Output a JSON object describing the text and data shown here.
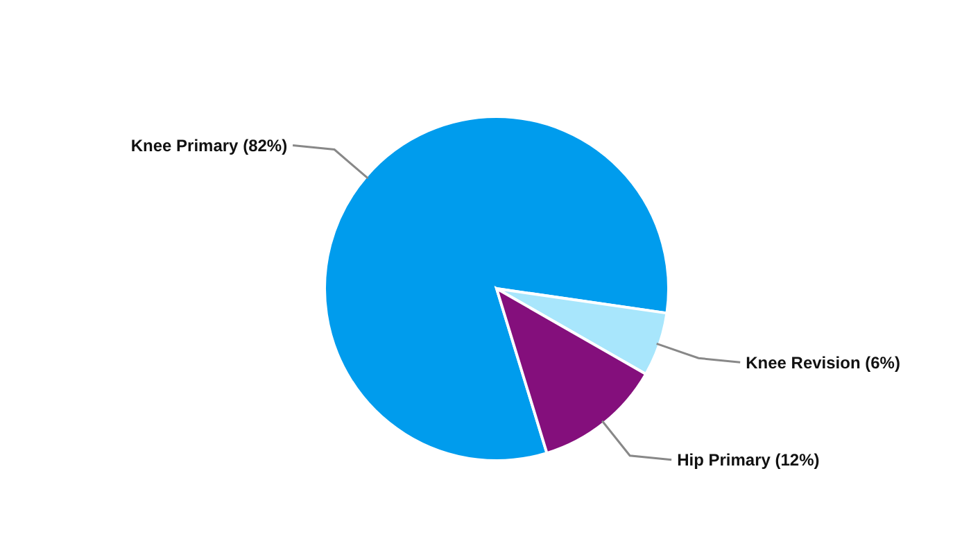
{
  "chart_data": {
    "type": "pie",
    "categories": [
      "Knee Primary",
      "Knee Revision",
      "Hip Primary"
    ],
    "values": [
      82,
      6,
      12
    ],
    "value_labels": [
      "(82%)",
      "(6%)",
      "(12%)"
    ],
    "colors": [
      "#009ced",
      "#a8e6fc",
      "#840f7c"
    ]
  }
}
